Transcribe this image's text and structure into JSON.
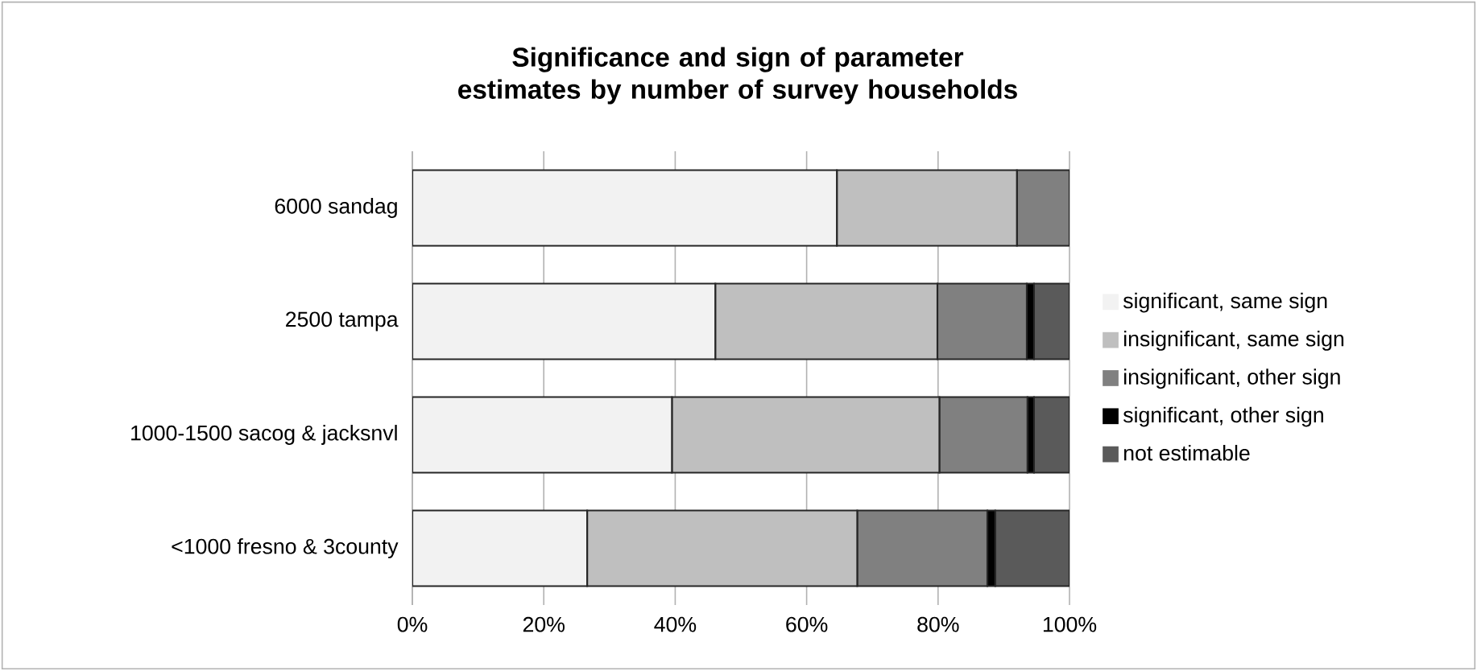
{
  "chart_data": {
    "type": "bar",
    "orientation": "horizontal",
    "stacked": true,
    "title": "Significance and sign of parameter estimates by number of survey households",
    "categories": [
      "6000 sandag",
      "2500 tampa",
      "1000-1500 sacog & jacksnvl",
      "<1000 fresno & 3county"
    ],
    "series": [
      {
        "name": "significant, same sign",
        "color": "#f2f2f2",
        "values": [
          64.6,
          46.1,
          39.5,
          26.6
        ]
      },
      {
        "name": "insignificant, same sign",
        "color": "#bfbfbf",
        "values": [
          27.4,
          33.8,
          40.7,
          41.1
        ]
      },
      {
        "name": "insignificant, other sign",
        "color": "#808080",
        "values": [
          8.0,
          13.6,
          13.4,
          19.8
        ]
      },
      {
        "name": "significant, other sign",
        "color": "#000000",
        "values": [
          0,
          1.1,
          1.0,
          1.2
        ]
      },
      {
        "name": "not estimable",
        "color": "#5a5a5a",
        "values": [
          0,
          5.4,
          5.4,
          11.3
        ]
      }
    ],
    "xlim": [
      0,
      100
    ],
    "xticks": [
      {
        "value": 0,
        "label": "0%"
      },
      {
        "value": 20,
        "label": "20%"
      },
      {
        "value": 40,
        "label": "40%"
      },
      {
        "value": 60,
        "label": "60%"
      },
      {
        "value": 80,
        "label": "80%"
      },
      {
        "value": 100,
        "label": "100%"
      }
    ],
    "grid": "x",
    "legend": "right"
  }
}
